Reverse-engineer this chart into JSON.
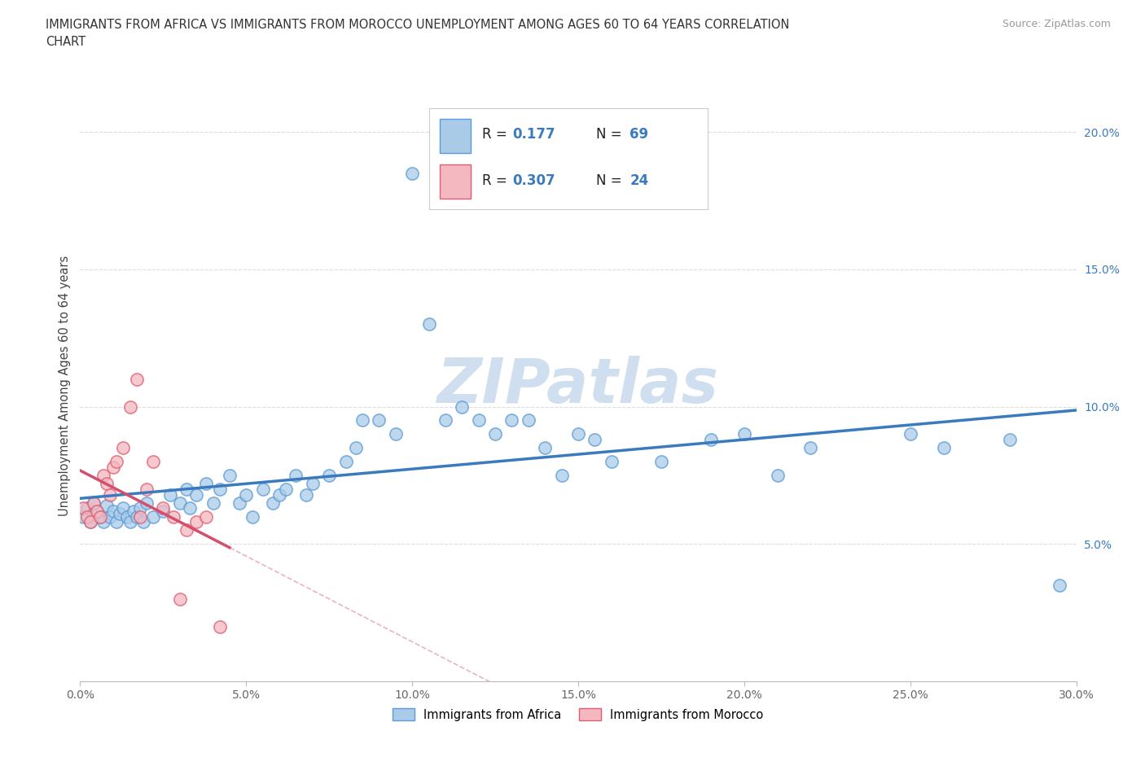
{
  "title_line1": "IMMIGRANTS FROM AFRICA VS IMMIGRANTS FROM MOROCCO UNEMPLOYMENT AMONG AGES 60 TO 64 YEARS CORRELATION",
  "title_line2": "CHART",
  "source_text": "Source: ZipAtlas.com",
  "ylabel": "Unemployment Among Ages 60 to 64 years",
  "xlim": [
    0.0,
    0.3
  ],
  "ylim": [
    0.0,
    0.215
  ],
  "xticks": [
    0.0,
    0.05,
    0.1,
    0.15,
    0.2,
    0.25,
    0.3
  ],
  "yticks": [
    0.05,
    0.1,
    0.15,
    0.2
  ],
  "ytick_labels": [
    "5.0%",
    "10.0%",
    "15.0%",
    "20.0%"
  ],
  "xtick_labels": [
    "0.0%",
    "5.0%",
    "10.0%",
    "15.0%",
    "20.0%",
    "25.0%",
    "30.0%"
  ],
  "africa_color": "#aacbe8",
  "africa_edge": "#5b9bd5",
  "morocco_color": "#f4b8c1",
  "morocco_edge": "#e05c6e",
  "africa_R": 0.177,
  "africa_N": 69,
  "morocco_R": 0.307,
  "morocco_N": 24,
  "watermark": "ZIPatlas",
  "watermark_color": "#d0dff0",
  "legend_label_africa": "Immigrants from Africa",
  "legend_label_morocco": "Immigrants from Morocco",
  "africa_trend_color": "#3a7bbf",
  "morocco_trend_color": "#d44f6e",
  "morocco_dashed_color": "#e8a0aa",
  "africa_x": [
    0.001,
    0.002,
    0.003,
    0.004,
    0.005,
    0.006,
    0.007,
    0.008,
    0.009,
    0.01,
    0.011,
    0.012,
    0.013,
    0.014,
    0.015,
    0.016,
    0.017,
    0.018,
    0.019,
    0.02,
    0.022,
    0.025,
    0.027,
    0.03,
    0.032,
    0.033,
    0.035,
    0.038,
    0.04,
    0.042,
    0.045,
    0.048,
    0.05,
    0.052,
    0.055,
    0.058,
    0.06,
    0.062,
    0.065,
    0.068,
    0.07,
    0.075,
    0.08,
    0.083,
    0.085,
    0.09,
    0.095,
    0.1,
    0.105,
    0.11,
    0.115,
    0.12,
    0.125,
    0.13,
    0.135,
    0.14,
    0.145,
    0.15,
    0.155,
    0.16,
    0.175,
    0.19,
    0.2,
    0.21,
    0.22,
    0.25,
    0.26,
    0.28,
    0.295
  ],
  "africa_y": [
    0.06,
    0.063,
    0.058,
    0.065,
    0.062,
    0.06,
    0.058,
    0.064,
    0.06,
    0.062,
    0.058,
    0.061,
    0.063,
    0.06,
    0.058,
    0.062,
    0.06,
    0.063,
    0.058,
    0.065,
    0.06,
    0.062,
    0.068,
    0.065,
    0.07,
    0.063,
    0.068,
    0.072,
    0.065,
    0.07,
    0.075,
    0.065,
    0.068,
    0.06,
    0.07,
    0.065,
    0.068,
    0.07,
    0.075,
    0.068,
    0.072,
    0.075,
    0.08,
    0.085,
    0.095,
    0.095,
    0.09,
    0.185,
    0.13,
    0.095,
    0.1,
    0.095,
    0.09,
    0.095,
    0.095,
    0.085,
    0.075,
    0.09,
    0.088,
    0.08,
    0.08,
    0.088,
    0.09,
    0.075,
    0.085,
    0.09,
    0.085,
    0.088,
    0.035
  ],
  "morocco_x": [
    0.001,
    0.002,
    0.003,
    0.004,
    0.005,
    0.006,
    0.007,
    0.008,
    0.009,
    0.01,
    0.011,
    0.013,
    0.015,
    0.017,
    0.018,
    0.02,
    0.022,
    0.025,
    0.028,
    0.03,
    0.032,
    0.035,
    0.038,
    0.042
  ],
  "morocco_y": [
    0.063,
    0.06,
    0.058,
    0.065,
    0.062,
    0.06,
    0.075,
    0.072,
    0.068,
    0.078,
    0.08,
    0.085,
    0.1,
    0.11,
    0.06,
    0.07,
    0.08,
    0.063,
    0.06,
    0.03,
    0.055,
    0.058,
    0.06,
    0.02
  ]
}
